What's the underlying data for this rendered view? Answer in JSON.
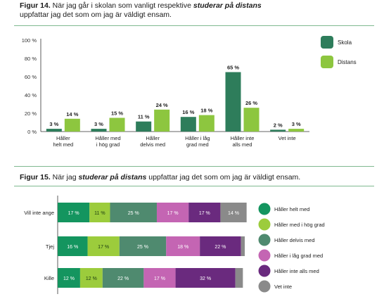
{
  "colors": {
    "skola": "#2e7d5b",
    "distans": "#8dc63f",
    "helt": "#14955f",
    "hog": "#9ccc3c",
    "delvis": "#4f8a6f",
    "lag": "#c465b3",
    "inte_alls": "#6a2a7e",
    "vet_inte": "#8a8a8a",
    "axis": "#333333",
    "rule": "#7fb98f"
  },
  "fig14": {
    "title_bold": "Figur 14.",
    "title_pre": " När jag går i skolan som vanligt respektive ",
    "title_em": "studerar på distans",
    "title_line2": "uppfattar jag det som om jag är väldigt ensam.",
    "chart_data": {
      "type": "bar",
      "categories": [
        [
          "Håller",
          "helt med"
        ],
        [
          "Håller med",
          "i hög grad"
        ],
        [
          "Håller",
          "delvis med"
        ],
        [
          "Håller i låg",
          "grad med"
        ],
        [
          "Håller inte",
          "alls med"
        ],
        [
          "Vet inte"
        ]
      ],
      "series": [
        {
          "name": "Skola",
          "values": [
            3,
            3,
            11,
            16,
            65,
            2
          ],
          "labels": [
            "3 %",
            "3 %",
            "11 %",
            "16 %",
            "65 %",
            "2 %"
          ]
        },
        {
          "name": "Distans",
          "values": [
            14,
            15,
            24,
            18,
            26,
            3
          ],
          "labels": [
            "14 %",
            "15 %",
            "24 %",
            "18 %",
            "26 %",
            "3 %"
          ]
        }
      ],
      "yticks": [
        "0 %",
        "20 %",
        "40 %",
        "60 %",
        "80 %",
        "100 %"
      ],
      "ylim": [
        0,
        100
      ],
      "legend": "top-right"
    }
  },
  "fig15": {
    "title_bold": "Figur 15.",
    "title_pre": " När jag ",
    "title_em": "studerar på distans",
    "title_post": " uppfattar jag det som om jag är väldigt ensam.",
    "chart_data": {
      "type": "bar",
      "orientation": "horizontal-stacked",
      "categories": [
        "Vill inte ange",
        "Tjej",
        "Kille"
      ],
      "series": [
        {
          "name": "Håller helt med",
          "values": [
            17,
            16,
            12
          ],
          "labels": [
            "17 %",
            "16 %",
            "12 %"
          ]
        },
        {
          "name": "Håller med i hög grad",
          "values": [
            11,
            17,
            12
          ],
          "labels": [
            "11 %",
            "17 %",
            "12 %"
          ]
        },
        {
          "name": "Håller delvis med",
          "values": [
            25,
            25,
            22
          ],
          "labels": [
            "25 %",
            "25 %",
            "22 %"
          ]
        },
        {
          "name": "Håller i låg grad med",
          "values": [
            17,
            18,
            17
          ],
          "labels": [
            "17 %",
            "18 %",
            "17 %"
          ]
        },
        {
          "name": "Håller inte alls med",
          "values": [
            17,
            22,
            32
          ],
          "labels": [
            "17 %",
            "22 %",
            "32 %"
          ]
        },
        {
          "name": "Vet inte",
          "values": [
            14,
            2,
            4
          ],
          "labels": [
            "14 %",
            "",
            ""
          ]
        }
      ],
      "xlim": [
        0,
        100
      ],
      "legend": "right"
    }
  }
}
